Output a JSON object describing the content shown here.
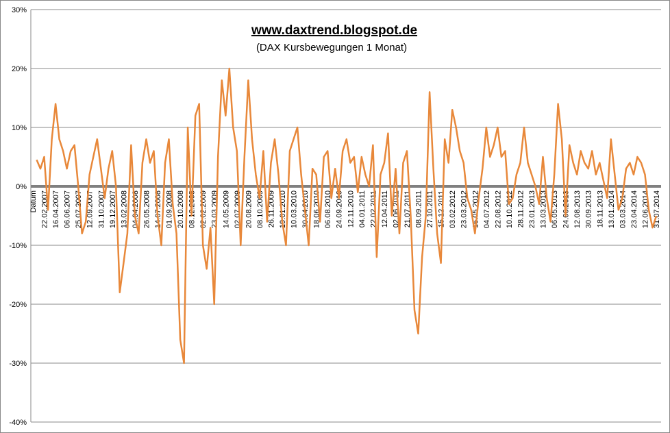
{
  "chart_data": {
    "type": "line",
    "title": "www.daxtrend.blogspot.de",
    "subtitle": "(DAX Kursbewegungen 1 Monat)",
    "ylim": [
      -40,
      30
    ],
    "yticks": [
      {
        "value": -40,
        "label": "-40%"
      },
      {
        "value": -30,
        "label": "-30%"
      },
      {
        "value": -20,
        "label": "-20%"
      },
      {
        "value": -10,
        "label": "-10%"
      },
      {
        "value": 0,
        "label": "0%"
      },
      {
        "value": 10,
        "label": "10%"
      },
      {
        "value": 20,
        "label": "20%"
      },
      {
        "value": 30,
        "label": "30%"
      }
    ],
    "grid": true,
    "categories": [
      "Datum",
      null,
      null,
      "22.02.2007",
      null,
      null,
      "16.04.2007",
      null,
      null,
      "06.06.2007",
      null,
      null,
      "25.07.2007",
      null,
      null,
      "12.09.2007",
      null,
      null,
      "31.10.2007",
      null,
      null,
      "19.12.2007",
      null,
      null,
      "13.02.2008",
      null,
      null,
      "04.04.2008",
      null,
      null,
      "26.05.2008",
      null,
      null,
      "14.07.2008",
      null,
      null,
      "01.09.2008",
      null,
      null,
      "20.10.2008",
      null,
      null,
      "08.12.2008",
      null,
      null,
      "02.02.2009",
      null,
      null,
      "23.03.2009",
      null,
      null,
      "14.05.2009",
      null,
      null,
      "02.07.2009",
      null,
      null,
      "20.08.2009",
      null,
      null,
      "08.10.2009",
      null,
      null,
      "26.11.2009",
      null,
      null,
      "19.01.2010",
      null,
      null,
      "10.03.2010",
      null,
      null,
      "30.04.2010",
      null,
      null,
      "18.06.2010",
      null,
      null,
      "06.08.2010",
      null,
      null,
      "24.09.2010",
      null,
      null,
      "12.11.2010",
      null,
      null,
      "04.01.2011",
      null,
      null,
      "22.02.2011",
      null,
      null,
      "12.04.2011",
      null,
      null,
      "02.06.2011",
      null,
      null,
      "21.07.2011",
      null,
      null,
      "08.09.2011",
      null,
      null,
      "27.10.2011",
      null,
      null,
      "15.12.2011",
      null,
      null,
      "03.02.2012",
      null,
      null,
      "23.03.2012",
      null,
      null,
      "16.05.2012",
      null,
      null,
      "04.07.2012",
      null,
      null,
      "22.08.2012",
      null,
      null,
      "10.10.2012",
      null,
      null,
      "28.11.2012",
      null,
      null,
      "23.01.2013",
      null,
      null,
      "13.03.2013",
      null,
      null,
      "06.05.2013",
      null,
      null,
      "24.06.2013",
      null,
      null,
      "12.08.2013",
      null,
      null,
      "30.09.2013",
      null,
      null,
      "18.11.2013",
      null,
      null,
      "13.01.2014",
      null,
      null,
      "03.03.2014",
      null,
      null,
      "23.04.2014",
      null,
      null,
      "12.06.2014",
      null,
      null,
      "31.07.2014"
    ],
    "series": [
      {
        "color": "#e8883a",
        "values": [
          null,
          4.5,
          3,
          5,
          -4,
          8,
          14,
          8,
          6,
          3,
          6,
          7,
          0,
          -8,
          -6,
          2,
          5,
          8,
          3,
          -2,
          3,
          6,
          0,
          -18,
          -13,
          -8,
          7,
          -5,
          -8,
          4,
          8,
          4,
          6,
          -5,
          -10,
          4,
          8,
          -3,
          -8,
          -26,
          -30,
          10,
          -5,
          12,
          14,
          -10,
          -14,
          -7,
          -20,
          5,
          18,
          12,
          20,
          10,
          6,
          -10,
          5,
          18,
          8,
          2,
          -2,
          6,
          -6,
          4,
          8,
          2,
          -6,
          -10,
          6,
          8,
          10,
          2,
          -4,
          -10,
          3,
          2,
          -6,
          5,
          6,
          -2,
          3,
          -2,
          6,
          8,
          4,
          5,
          -1,
          5,
          2,
          0,
          7,
          -12,
          2,
          4,
          9,
          -5,
          3,
          -8,
          4,
          6,
          -5,
          -21,
          -25,
          -12,
          -5,
          16,
          3,
          -8,
          -13,
          8,
          4,
          13,
          10,
          6,
          4,
          -2,
          -4,
          -8,
          -2,
          3,
          10,
          5,
          7,
          10,
          5,
          6,
          -3,
          -2,
          2,
          4,
          10,
          4,
          2,
          0,
          -3,
          5,
          -2,
          -6,
          2,
          14,
          8,
          -5,
          7,
          4,
          2,
          6,
          4,
          3,
          6,
          2,
          4,
          1,
          -2,
          8,
          2,
          -4,
          -2,
          3,
          4,
          2,
          5,
          4,
          2,
          -4,
          -7,
          -5
        ]
      }
    ]
  }
}
